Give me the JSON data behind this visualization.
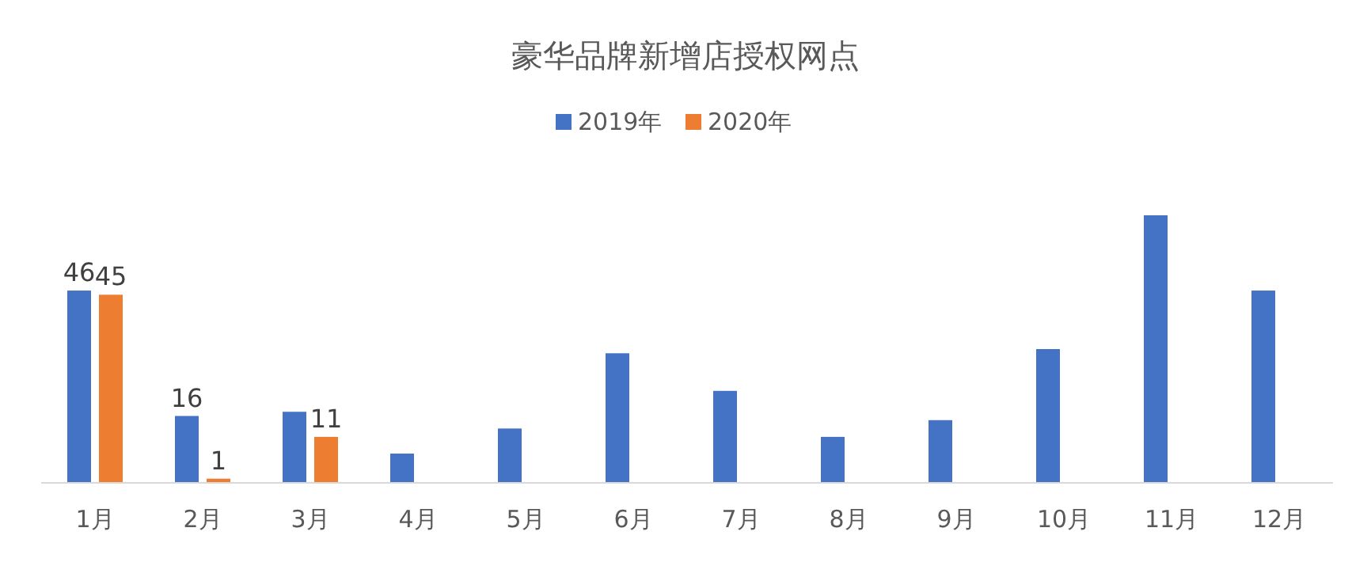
{
  "chart_data": {
    "type": "bar",
    "title": "豪华品牌新增店授权网点",
    "categories": [
      "1月",
      "2月",
      "3月",
      "4月",
      "5月",
      "6月",
      "7月",
      "8月",
      "9月",
      "10月",
      "11月",
      "12月"
    ],
    "legend": "top",
    "series": [
      {
        "name": "2019年",
        "color": "#4472c4",
        "values": [
          46,
          16,
          17,
          7,
          13,
          31,
          22,
          11,
          15,
          32,
          64,
          46
        ],
        "value_labels": [
          "46",
          "16",
          null,
          null,
          null,
          null,
          null,
          null,
          null,
          null,
          null,
          null
        ]
      },
      {
        "name": "2020年",
        "color": "#ed7d31",
        "values": [
          45,
          1,
          11,
          null,
          null,
          null,
          null,
          null,
          null,
          null,
          null,
          null
        ],
        "value_labels": [
          "45",
          "1",
          "11",
          null,
          null,
          null,
          null,
          null,
          null,
          null,
          null,
          null
        ]
      }
    ]
  }
}
